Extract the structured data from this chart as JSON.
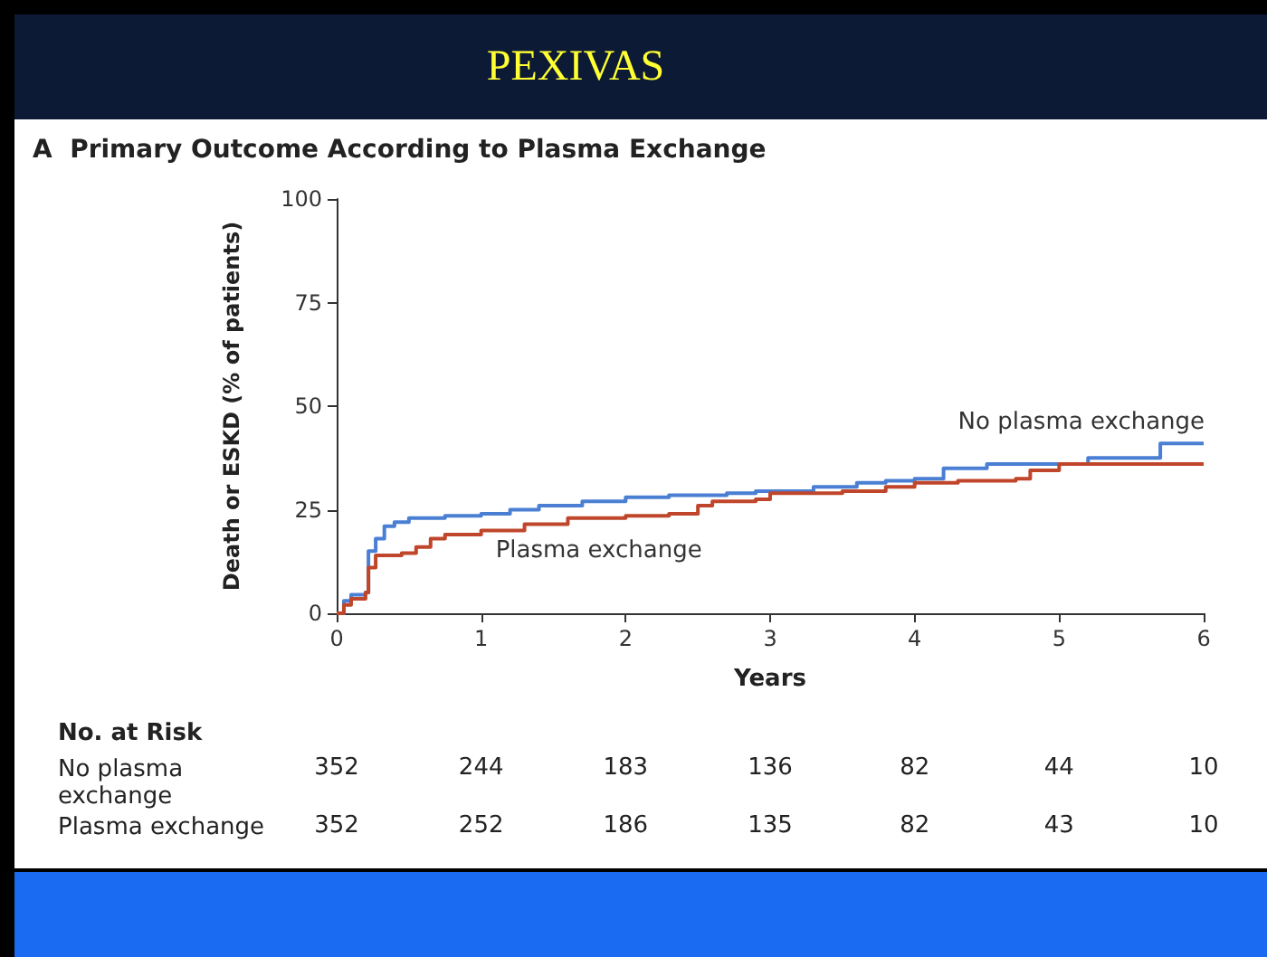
{
  "chart_data": {
    "type": "step",
    "title": "PEXIVAS",
    "subtitle": "A  Primary Outcome According to Plasma Exchange",
    "xlabel": "Years",
    "ylabel": "Death or ESKD (% of patients)",
    "xlim": [
      0,
      6
    ],
    "xticks": [
      0,
      1,
      2,
      3,
      4,
      5,
      6
    ],
    "ylim": [
      0,
      100
    ],
    "yticks": [
      0,
      25,
      50,
      75,
      100
    ],
    "grid": false,
    "legend": false,
    "marker": "none",
    "line_style": "solid",
    "series": [
      {
        "name": "No plasma exchange",
        "color": "#4a7fd4",
        "x": [
          0,
          0.05,
          0.1,
          0.2,
          0.22,
          0.27,
          0.33,
          0.4,
          0.5,
          0.75,
          1,
          1.2,
          1.4,
          1.7,
          2,
          2.3,
          2.7,
          2.9,
          3.3,
          3.6,
          3.8,
          4,
          4.2,
          4.5,
          5,
          5.2,
          5.7,
          6
        ],
        "values": [
          0,
          3,
          4.5,
          5,
          15,
          18,
          21,
          22,
          23,
          23.5,
          24,
          25,
          26,
          27,
          28,
          28.5,
          29,
          29.5,
          30.5,
          31.5,
          32,
          32.5,
          35,
          36,
          36,
          37.5,
          41,
          41
        ]
      },
      {
        "name": "Plasma exchange",
        "color": "#c0462b",
        "x": [
          0,
          0.05,
          0.1,
          0.2,
          0.22,
          0.27,
          0.45,
          0.55,
          0.65,
          0.75,
          1,
          1.3,
          1.6,
          2,
          2.3,
          2.5,
          2.6,
          2.9,
          3,
          3.5,
          3.8,
          4,
          4.3,
          4.7,
          4.8,
          5,
          6
        ],
        "values": [
          0,
          2,
          3.5,
          5,
          11,
          14,
          14.5,
          16,
          18,
          19,
          20,
          21.5,
          23,
          23.5,
          24,
          26,
          27,
          27.5,
          29,
          29.5,
          30.5,
          31.5,
          32,
          32.5,
          34.5,
          36,
          36
        ]
      }
    ],
    "annotations": [
      "No. at Risk",
      "No plasma exchange",
      "352",
      "244",
      "183",
      "136",
      "82",
      "44",
      "10",
      "Plasma exchange",
      "352",
      "252",
      "186",
      "135",
      "82",
      "43",
      "10"
    ]
  }
}
